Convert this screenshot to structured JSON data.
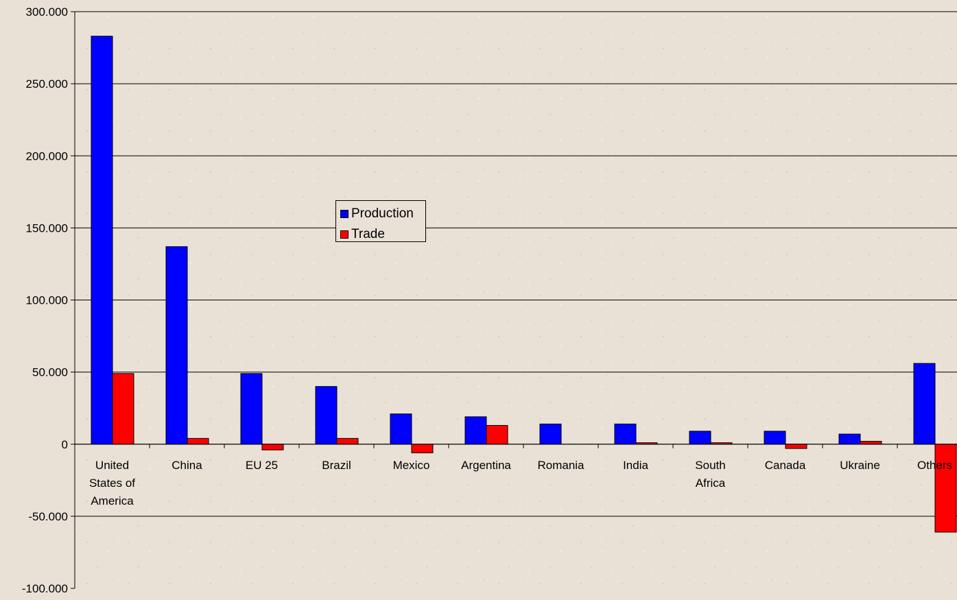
{
  "chart_data": {
    "type": "bar",
    "categories": [
      [
        "United",
        "States of",
        "America"
      ],
      [
        "China"
      ],
      [
        "EU 25"
      ],
      [
        "Brazil"
      ],
      [
        "Mexico"
      ],
      [
        "Argentina"
      ],
      [
        "Romania"
      ],
      [
        "India"
      ],
      [
        "South",
        "Africa"
      ],
      [
        "Canada"
      ],
      [
        "Ukraine"
      ],
      [
        "Others"
      ]
    ],
    "series": [
      {
        "name": "Production",
        "color": "#0000ff",
        "values": [
          283,
          137,
          49,
          40,
          21,
          19,
          14,
          14,
          9,
          9,
          7,
          56
        ]
      },
      {
        "name": "Trade",
        "color": "#ff0000",
        "values": [
          49,
          4,
          -4,
          4,
          -6,
          13,
          0,
          1,
          1,
          -3,
          2,
          -61
        ]
      }
    ],
    "ylim": [
      -100,
      300
    ],
    "yticks": [
      -100,
      -50,
      0,
      50,
      100,
      150,
      200,
      250,
      300
    ],
    "ytick_labels": [
      "-100.000",
      "-50.000",
      "0",
      "50.000",
      "100.000",
      "150.000",
      "200.000",
      "250.000",
      "300.000"
    ],
    "grid": true,
    "legend_position": "center-left"
  }
}
